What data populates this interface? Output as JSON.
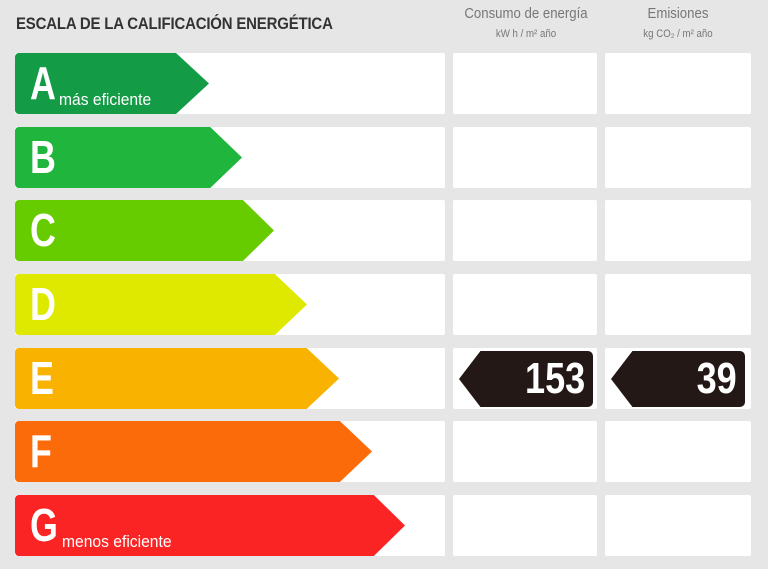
{
  "header": {
    "title": "ESCALA DE LA CALIFICACIÓN ENERGÉTICA",
    "energy_col": "Consumo de energía",
    "energy_unit": "kW h / m² año",
    "emissions_col": "Emisiones",
    "emissions_unit": "kg CO₂ / m² año"
  },
  "ratings": [
    {
      "letter": "A",
      "note": "más eficiente",
      "color": "#149b46"
    },
    {
      "letter": "B",
      "note": "",
      "color": "#20b53d"
    },
    {
      "letter": "C",
      "note": "",
      "color": "#66cc00"
    },
    {
      "letter": "D",
      "note": "",
      "color": "#dfe900"
    },
    {
      "letter": "E",
      "note": "",
      "color": "#f9b200"
    },
    {
      "letter": "F",
      "note": "",
      "color": "#fb6b0a"
    },
    {
      "letter": "G",
      "note": "menos eficiente",
      "color": "#fb2424"
    }
  ],
  "result": {
    "rating": "E",
    "energy_value": "153",
    "emissions_value": "39",
    "tag_color": "#231815"
  }
}
